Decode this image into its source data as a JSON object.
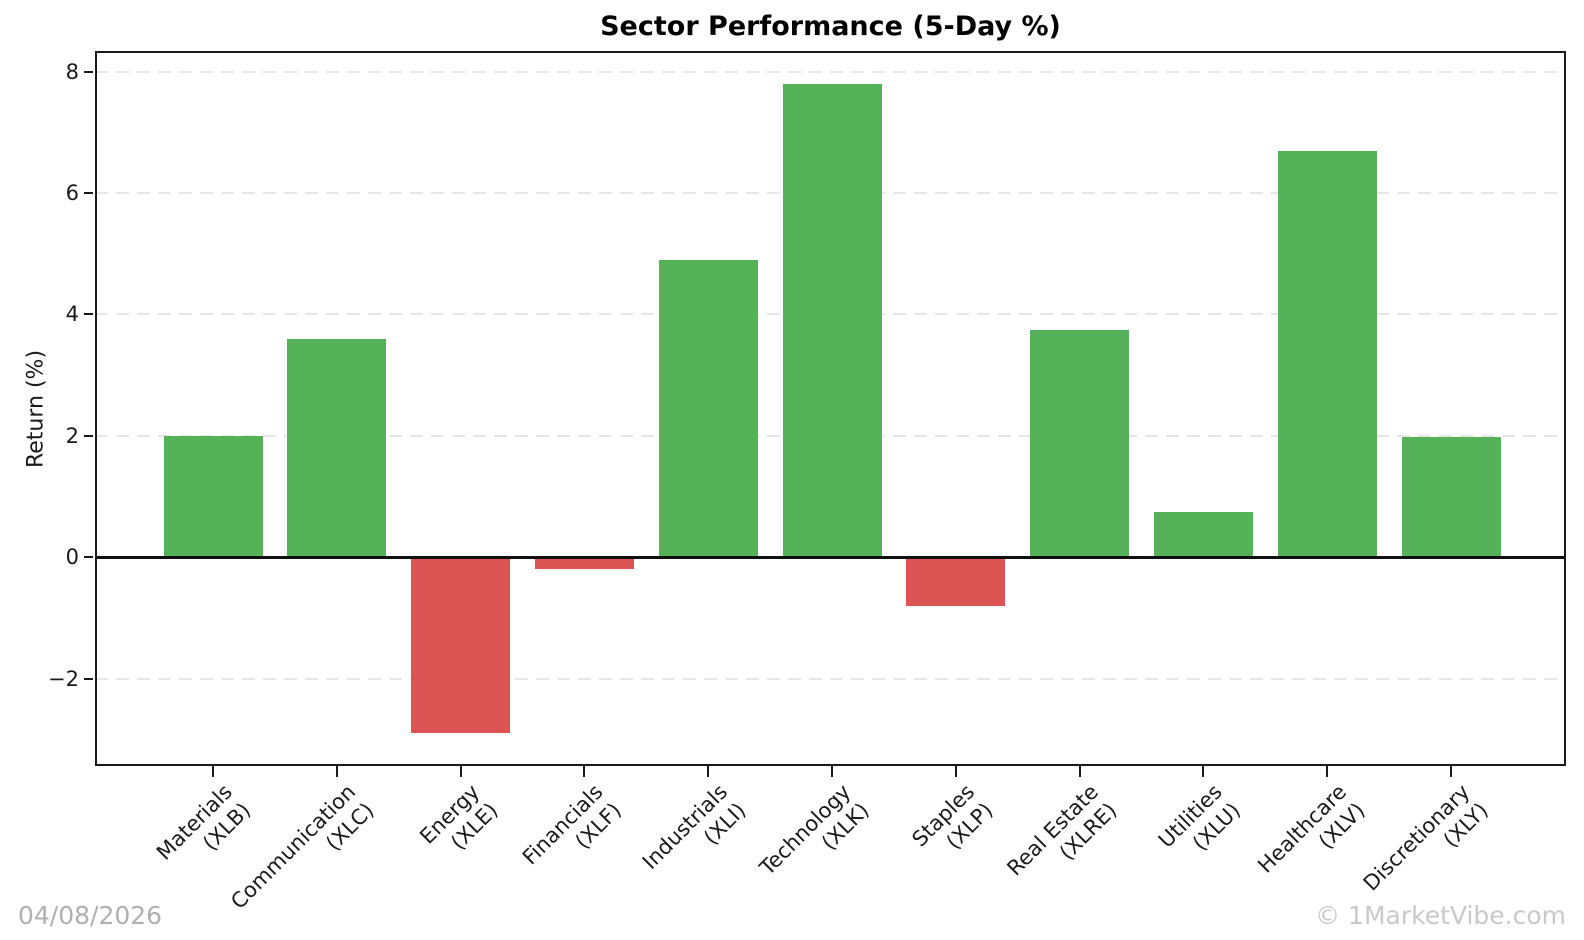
{
  "chart_data": {
    "type": "bar",
    "title": "Sector Performance (5-Day %)",
    "ylabel": "Return (%)",
    "xlabel": "",
    "categories": [
      "Materials\n(XLB)",
      "Communication\n(XLC)",
      "Energy\n(XLE)",
      "Financials\n(XLF)",
      "Industrials\n(XLI)",
      "Technology\n(XLK)",
      "Staples\n(XLP)",
      "Real Estate\n(XLRE)",
      "Utilities\n(XLU)",
      "Healthcare\n(XLV)",
      "Discretionary\n(XLY)"
    ],
    "values": [
      2.0,
      3.6,
      -2.9,
      -0.2,
      4.9,
      7.8,
      -0.8,
      3.75,
      0.75,
      6.7,
      1.98
    ],
    "ylim": [
      -3.44,
      8.34
    ],
    "yticks": [
      -2,
      0,
      2,
      4,
      6,
      8
    ],
    "ytick_labels": [
      "−2",
      "0",
      "2",
      "4",
      "6",
      "8"
    ],
    "grid": "horizontal-dashed",
    "legend": "none",
    "bar_color_rule": "green if value >= 0 else red",
    "colors": {
      "positive": "#55B258",
      "negative": "#DB5352",
      "grid": "#E6E6E6",
      "axis": "#1A1A1A",
      "zero_line": "#111111"
    }
  },
  "footer": {
    "date": "04/08/2026",
    "watermark": "© 1MarketVibe.com"
  }
}
